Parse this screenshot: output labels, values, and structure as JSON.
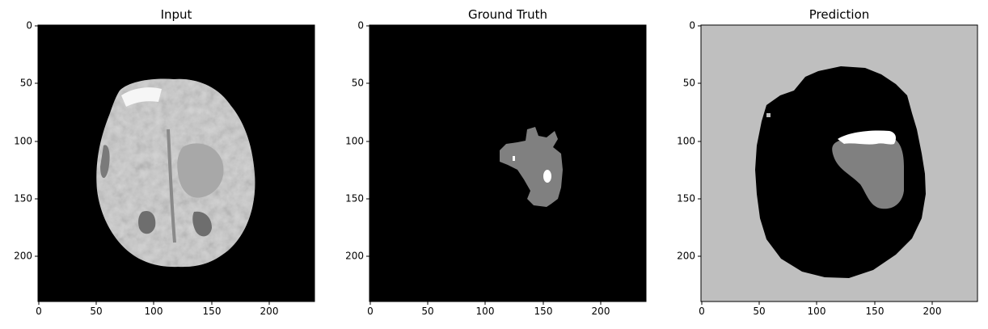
{
  "figure": {
    "panels": [
      {
        "title": "Input",
        "x_ticks": [
          0,
          50,
          100,
          150,
          200
        ],
        "y_ticks": [
          0,
          50,
          100,
          150,
          200
        ],
        "axis_range": [
          0,
          240
        ],
        "content": "brain-mri-slice"
      },
      {
        "title": "Ground Truth",
        "x_ticks": [
          0,
          50,
          100,
          150,
          200
        ],
        "y_ticks": [
          0,
          50,
          100,
          150,
          200
        ],
        "axis_range": [
          0,
          240
        ],
        "content": "tumor-mask"
      },
      {
        "title": "Prediction",
        "x_ticks": [
          0,
          50,
          100,
          150,
          200
        ],
        "y_ticks": [
          0,
          50,
          100,
          150,
          200
        ],
        "axis_range": [
          0,
          240
        ],
        "content": "predicted-mask"
      }
    ],
    "colors": {
      "background": "#000000",
      "brain": "#d6d6d6",
      "tumor_core": "#808080",
      "enhancing": "#ffffff",
      "prediction_background": "#bfbfbf"
    }
  }
}
